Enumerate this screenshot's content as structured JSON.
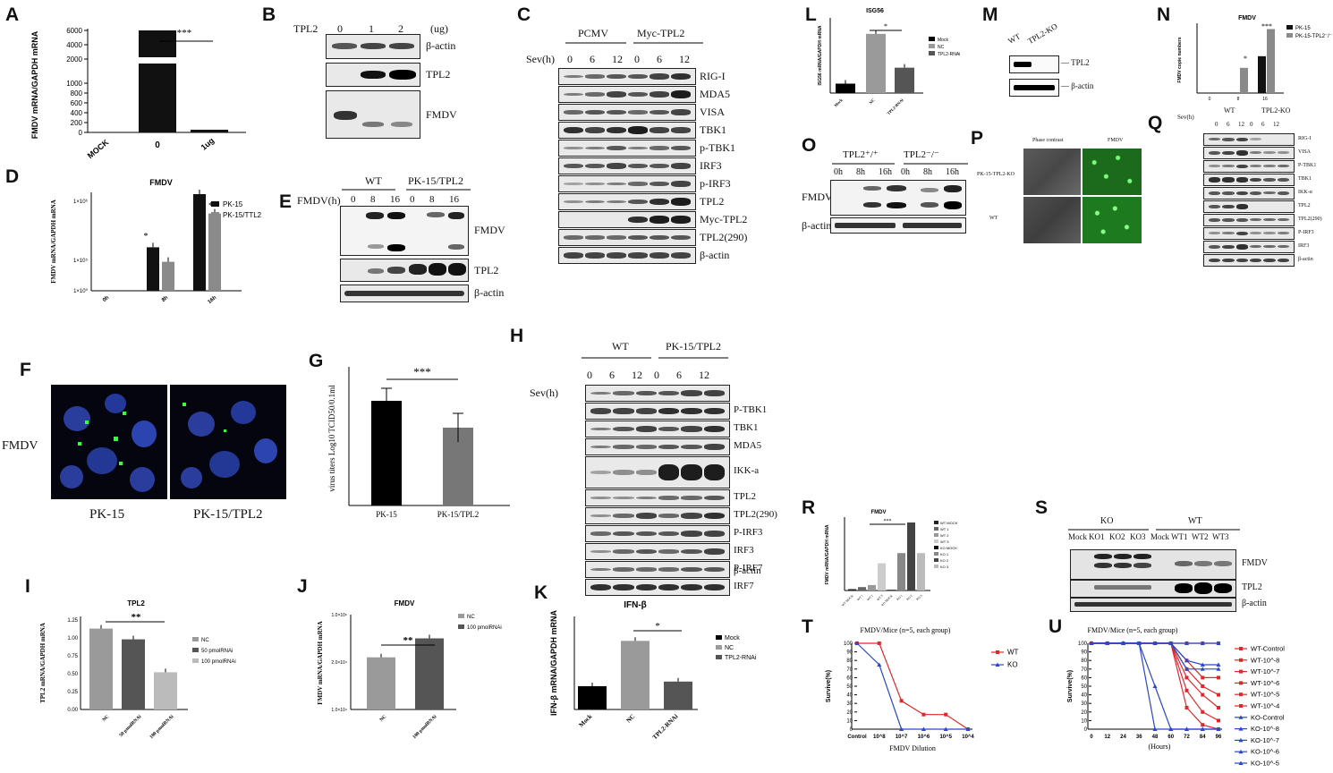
{
  "panel_letters": [
    "A",
    "B",
    "C",
    "D",
    "E",
    "F",
    "G",
    "H",
    "I",
    "J",
    "K",
    "L",
    "M",
    "N",
    "O",
    "P",
    "Q",
    "R",
    "S",
    "T",
    "U"
  ],
  "panelA": {
    "chart_data": {
      "type": "bar",
      "categories": [
        "MOCK",
        "0",
        "1ug"
      ],
      "values": [
        0,
        3800,
        60
      ],
      "ylabel": "FMDV mRNA/GAPDH mRNA",
      "yticks": [
        "0",
        "200",
        "400",
        "600",
        "800",
        "1000",
        "2000",
        "4000",
        "6000"
      ],
      "sig": "***"
    }
  },
  "panelB": {
    "header": "TPL2",
    "cols": [
      "0",
      "1",
      "2"
    ],
    "unit": "(ug)",
    "rows": [
      "β-actin",
      "TPL2",
      "FMDV"
    ]
  },
  "panelC": {
    "groups": [
      "PCMV",
      "Myc-TPL2"
    ],
    "row_label": "Sev(h)",
    "cols": [
      "0",
      "6",
      "12",
      "0",
      "6",
      "12"
    ],
    "rows": [
      "RIG-I",
      "MDA5",
      "VISA",
      "TBK1",
      "p-TBK1",
      "IRF3",
      "p-IRF3",
      "TPL2",
      "Myc-TPL2",
      "TPL2(290)",
      "β-actin"
    ]
  },
  "panelD": {
    "chart_data": {
      "type": "bar",
      "title": "FMDV",
      "ylabel": "FMDV mRNA/GAPDH mRNA",
      "categories": [
        "0h",
        "8h",
        "16h"
      ],
      "yticks": [
        "1×10⁰",
        "1×10⁵",
        "1×10⁶"
      ],
      "series": [
        {
          "name": "PK-15",
          "values": [
            0,
            0.45,
            1.0
          ],
          "color": "#111111"
        },
        {
          "name": "PK-15/TTL2",
          "values": [
            0,
            0.3,
            0.8
          ],
          "color": "#8a8a8a"
        }
      ],
      "sig": [
        "*",
        "**"
      ]
    }
  },
  "panelE": {
    "row_label": "FMDV(h)",
    "groups": [
      "WT",
      "PK-15/TPL2"
    ],
    "cols": [
      "0",
      "8",
      "16",
      "0",
      "8",
      "16"
    ],
    "rows": [
      "FMDV",
      "TPL2",
      "β-actin"
    ]
  },
  "panelF": {
    "row_label": "FMDV",
    "captions": [
      "PK-15",
      "PK-15/TPL2"
    ]
  },
  "panelG": {
    "chart_data": {
      "type": "bar",
      "categories": [
        "PK-15",
        "PK-15/TPL2"
      ],
      "values": [
        4.85,
        4.4
      ],
      "ylabel": "virus titers Log10 TCID50/0.1ml",
      "sig": "***"
    }
  },
  "panelH": {
    "row_label": "Sev(h)",
    "groups": [
      "WT",
      "PK-15/TPL2"
    ],
    "cols": [
      "0",
      "6",
      "12",
      "0",
      "6",
      "12"
    ],
    "rows": [
      "P-TBK1",
      "TBK1",
      "MDA5",
      "IKK-a",
      "TPL2",
      "TPL2(290)",
      "P-IRF3",
      "IRF3",
      "P-IRF7",
      "IRF7",
      "β-actin"
    ]
  },
  "panelI": {
    "chart_data": {
      "type": "bar",
      "title": "TPL2",
      "ylabel": "TPL2 mRNA/GAPDH mRNA",
      "categories": [
        "NC",
        "50 pmolRNAi",
        "100 pmolRNAi"
      ],
      "values": [
        1.13,
        0.98,
        0.52
      ],
      "yticks": [
        "0.00",
        "0.25",
        "0.50",
        "0.75",
        "1.00",
        "1.25"
      ],
      "ylim": [
        0,
        1.3
      ],
      "legend": [
        "NC",
        "50 pmolRNAi",
        "100 pmolRNAi"
      ],
      "sig": "**",
      "colors": [
        "#9a9a9a",
        "#555555",
        "#bbbbbb"
      ]
    }
  },
  "panelJ": {
    "chart_data": {
      "type": "bar",
      "title": "FMDV",
      "ylabel": "FMDV mRNA/GAPDH mRNA",
      "categories": [
        "NC",
        "100 pmolRNAi"
      ],
      "values": [
        0.55,
        0.75
      ],
      "yticks": [
        "1.0×10⁴",
        "2.0×10⁴",
        "1.0×10⁶"
      ],
      "legend": [
        "NC",
        "100 pmolRNAi"
      ],
      "sig": "**",
      "colors": [
        "#9a9a9a",
        "#555555"
      ]
    }
  },
  "panelK": {
    "chart_data": {
      "type": "bar",
      "title": "IFN-β",
      "ylabel": "IFN-β mRNA/GAPDH mRNA",
      "categories": [
        "Mock",
        "NC",
        "TPL2-RNAi"
      ],
      "values": [
        1.0,
        2.95,
        1.2
      ],
      "yticks": [
        "0",
        "1",
        "2",
        "3",
        "4"
      ],
      "ylim": [
        0,
        4
      ],
      "legend": [
        "Mock",
        "NC",
        "TPL2-RNAi"
      ],
      "sig": "*",
      "colors": [
        "#000000",
        "#9a9a9a",
        "#555555"
      ]
    }
  },
  "panelL": {
    "chart_data": {
      "type": "bar",
      "title": "ISG56",
      "ylabel": "ISG56 mRNA/GAPDH mRNA",
      "categories": [
        "Mock",
        "NC",
        "TPL2-RNAi"
      ],
      "values": [
        1.0,
        6.3,
        2.7
      ],
      "ylim": [
        0,
        8
      ],
      "legend": [
        "Mock",
        "NC",
        "TPL2-RNAi"
      ],
      "sig": "*",
      "colors": [
        "#000000",
        "#9a9a9a",
        "#555555"
      ]
    }
  },
  "panelM": {
    "cols": [
      "WT",
      "TPL2-KO"
    ],
    "rows": [
      "— TPL2",
      "— β-actin"
    ]
  },
  "panelN": {
    "chart_data": {
      "type": "bar",
      "title": "FMDV",
      "ylabel": "FMDV copie numbers",
      "categories": [
        "0",
        "8",
        "16"
      ],
      "series": [
        {
          "name": "PK-15",
          "values": [
            0,
            0,
            1.9
          ],
          "color": "#111111"
        },
        {
          "name": "PK-15-TPL2⁻/⁻",
          "values": [
            0,
            1.3,
            3.3
          ],
          "color": "#8a8a8a"
        }
      ],
      "sig": [
        "*",
        "***"
      ]
    }
  },
  "panelO": {
    "groups": [
      "TPL2⁺/⁺",
      "TPL2⁻/⁻"
    ],
    "cols": [
      "0h",
      "8h",
      "16h",
      "0h",
      "8h",
      "16h"
    ],
    "rows": [
      "FMDV",
      "β-actin"
    ]
  },
  "panelP": {
    "cols": [
      "Phase contrast",
      "FMDV"
    ],
    "rows": [
      "PK-15-TPL2-KO",
      "WT"
    ]
  },
  "panelQ": {
    "row_label": "Sev(h)",
    "groups": [
      "WT",
      "TPL2-KO"
    ],
    "cols": [
      "0",
      "6",
      "12",
      "0",
      "6",
      "12"
    ],
    "rows": [
      "RIG-I",
      "VISA",
      "P-TBK1",
      "TBK1",
      "IKK-α",
      "TPL2",
      "TPL2(290)",
      "P-IRF3",
      "IRF3",
      "β-actin"
    ]
  },
  "panelR": {
    "chart_data": {
      "type": "bar",
      "title": "FMDV",
      "ylabel": "FMDV mRNA/GAPDH mRNA",
      "categories": [
        "WT MOCK",
        "WT 1",
        "WT 2",
        "WT 3",
        "KO MOCK",
        "KO 1",
        "KO 2",
        "KO 3"
      ],
      "values": [
        0.02,
        0.05,
        0.08,
        0.4,
        0.01,
        0.55,
        1.0,
        0.55
      ],
      "legend": [
        "WT MOCK",
        "WT 1",
        "WT 2",
        "WT 3",
        "KO MOCK",
        "KO 1",
        "KO 2",
        "KO 3"
      ],
      "sig": "***"
    }
  },
  "panelS": {
    "groups": [
      "KO",
      "WT"
    ],
    "cols": [
      "Mock",
      "KO1",
      "KO2",
      "KO3",
      "Mock",
      "WT1",
      "WT2",
      "WT3"
    ],
    "rows": [
      "FMDV",
      "TPL2",
      "β-actin"
    ]
  },
  "panelT": {
    "chart_data": {
      "type": "line",
      "title": "FMDV/Mice (n=5, each group)",
      "xlabel": "FMDV Dilution",
      "ylabel": "Survive(%)",
      "categories": [
        "Control",
        "10^8",
        "10^7",
        "10^6",
        "10^5",
        "10^4"
      ],
      "yticks": [
        "0",
        "10",
        "20",
        "30",
        "40",
        "50",
        "60",
        "70",
        "80",
        "90",
        "100"
      ],
      "ylim": [
        0,
        100
      ],
      "series": [
        {
          "name": "WT",
          "values": [
            100,
            100,
            33,
            17,
            17,
            0
          ],
          "color": "#e0282a"
        },
        {
          "name": "KO",
          "values": [
            100,
            75,
            0,
            0,
            0,
            0
          ],
          "color": "#2a48c8"
        }
      ]
    }
  },
  "panelU": {
    "chart_data": {
      "type": "line",
      "title": "FMDV/Mice (n=5, each group)",
      "xlabel": "(Hours)",
      "ylabel": "Survive(%)",
      "x": [
        0,
        12,
        24,
        36,
        48,
        60,
        72,
        84,
        96
      ],
      "ylim": [
        0,
        100
      ],
      "yticks": [
        "0",
        "10",
        "20",
        "30",
        "40",
        "50",
        "60",
        "70",
        "80",
        "90",
        "100"
      ],
      "series": [
        {
          "name": "WT-Control",
          "color": "#e0282a",
          "values": [
            100,
            100,
            100,
            100,
            100,
            100,
            100,
            100,
            100
          ]
        },
        {
          "name": "WT-10^-8",
          "color": "#e0282a",
          "values": [
            100,
            100,
            100,
            100,
            100,
            100,
            80,
            60,
            60
          ]
        },
        {
          "name": "WT-10^-7",
          "color": "#e0282a",
          "values": [
            100,
            100,
            100,
            100,
            100,
            100,
            70,
            50,
            40
          ]
        },
        {
          "name": "WT-10^-6",
          "color": "#e0282a",
          "values": [
            100,
            100,
            100,
            100,
            100,
            100,
            60,
            40,
            25
          ]
        },
        {
          "name": "WT-10^-5",
          "color": "#e0282a",
          "values": [
            100,
            100,
            100,
            100,
            100,
            100,
            45,
            20,
            10
          ]
        },
        {
          "name": "WT-10^-4",
          "color": "#e0282a",
          "values": [
            100,
            100,
            100,
            100,
            100,
            100,
            25,
            5,
            0
          ]
        },
        {
          "name": "KO-Control",
          "color": "#2a48c8",
          "values": [
            100,
            100,
            100,
            100,
            100,
            100,
            100,
            100,
            100
          ]
        },
        {
          "name": "KO-10^-8",
          "color": "#2a48c8",
          "values": [
            100,
            100,
            100,
            100,
            100,
            100,
            80,
            75,
            75
          ]
        },
        {
          "name": "KO-10^-7",
          "color": "#2a48c8",
          "values": [
            100,
            100,
            100,
            100,
            100,
            100,
            70,
            70,
            70
          ]
        },
        {
          "name": "KO-10^-6",
          "color": "#2a48c8",
          "values": [
            100,
            100,
            100,
            100,
            50,
            0,
            0,
            0,
            0
          ]
        },
        {
          "name": "KO-10^-5",
          "color": "#2a48c8",
          "values": [
            100,
            100,
            100,
            100,
            0,
            0,
            0,
            0,
            0
          ]
        }
      ]
    }
  }
}
